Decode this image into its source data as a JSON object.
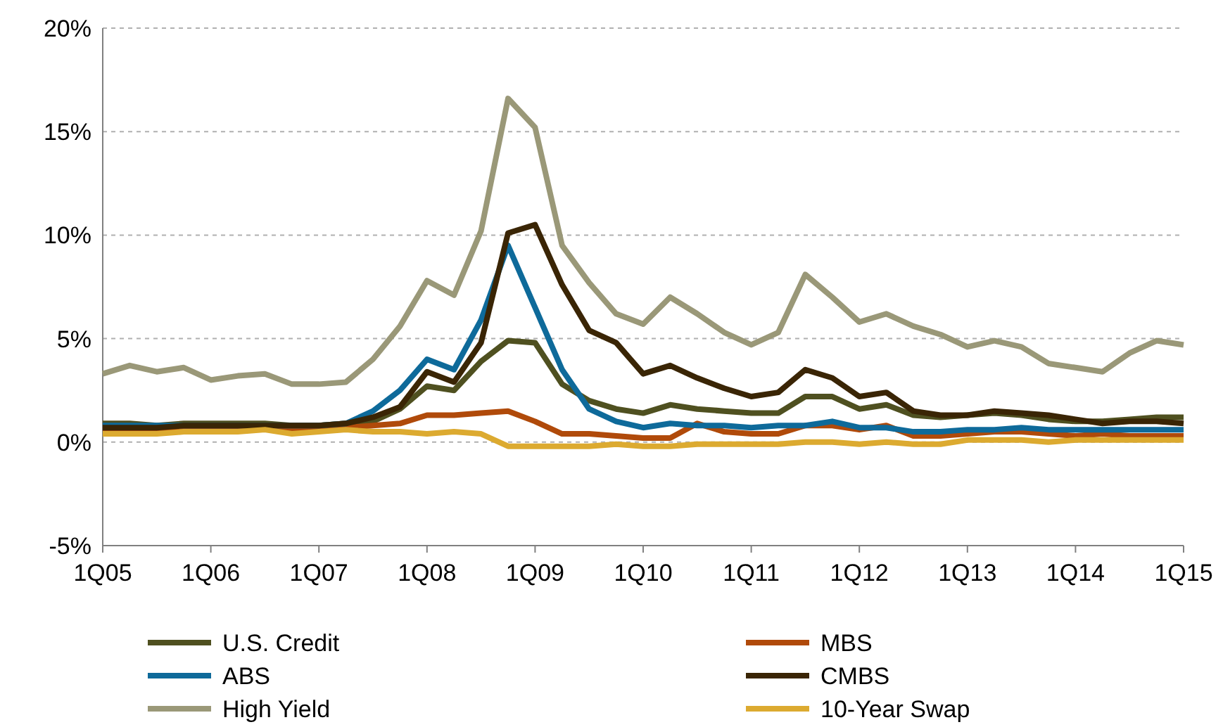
{
  "chart_data": {
    "type": "line",
    "categories": [
      "1Q05",
      null,
      null,
      null,
      "1Q06",
      null,
      null,
      null,
      "1Q07",
      null,
      null,
      null,
      "1Q08",
      null,
      null,
      null,
      "1Q09",
      null,
      null,
      null,
      "1Q10",
      null,
      null,
      null,
      "1Q11",
      null,
      null,
      null,
      "1Q12",
      null,
      null,
      null,
      "1Q13",
      null,
      null,
      null,
      "1Q14",
      null,
      null,
      null,
      "1Q15"
    ],
    "series": [
      {
        "name": "U.S. Credit",
        "color": "#4f5020",
        "values": [
          0.9,
          0.9,
          0.8,
          0.9,
          0.9,
          0.9,
          0.9,
          0.8,
          0.8,
          0.9,
          1.0,
          1.6,
          2.7,
          2.5,
          3.9,
          4.9,
          4.8,
          2.8,
          2.0,
          1.6,
          1.4,
          1.8,
          1.6,
          1.5,
          1.4,
          1.4,
          2.2,
          2.2,
          1.6,
          1.8,
          1.3,
          1.2,
          1.3,
          1.4,
          1.3,
          1.1,
          1.0,
          1.0,
          1.1,
          1.2,
          1.2
        ]
      },
      {
        "name": "MBS",
        "color": "#b04a0a",
        "values": [
          0.6,
          0.6,
          0.6,
          0.7,
          0.7,
          0.7,
          0.7,
          0.6,
          0.7,
          0.7,
          0.8,
          0.9,
          1.3,
          1.3,
          1.4,
          1.5,
          1.0,
          0.4,
          0.4,
          0.3,
          0.2,
          0.2,
          0.9,
          0.5,
          0.4,
          0.4,
          0.8,
          0.8,
          0.6,
          0.8,
          0.3,
          0.3,
          0.4,
          0.5,
          0.5,
          0.4,
          0.3,
          0.4,
          0.3,
          0.3,
          0.3
        ]
      },
      {
        "name": "ABS",
        "color": "#0e6a9a",
        "values": [
          0.8,
          0.8,
          0.8,
          0.8,
          0.8,
          0.8,
          0.8,
          0.8,
          0.8,
          0.9,
          1.5,
          2.5,
          4.0,
          3.5,
          5.9,
          9.5,
          6.5,
          3.5,
          1.6,
          1.0,
          0.7,
          0.9,
          0.8,
          0.8,
          0.7,
          0.8,
          0.8,
          1.0,
          0.7,
          0.7,
          0.5,
          0.5,
          0.6,
          0.6,
          0.7,
          0.6,
          0.6,
          0.6,
          0.6,
          0.6,
          0.6
        ]
      },
      {
        "name": "CMBS",
        "color": "#3a2505",
        "values": [
          0.7,
          0.7,
          0.7,
          0.8,
          0.8,
          0.8,
          0.8,
          0.8,
          0.8,
          0.9,
          1.2,
          1.7,
          3.4,
          2.9,
          4.8,
          10.1,
          10.5,
          7.6,
          5.4,
          4.8,
          3.3,
          3.7,
          3.1,
          2.6,
          2.2,
          2.4,
          3.5,
          3.1,
          2.2,
          2.4,
          1.5,
          1.3,
          1.3,
          1.5,
          1.4,
          1.3,
          1.1,
          0.9,
          1.0,
          1.0,
          0.9
        ]
      },
      {
        "name": "High Yield",
        "color": "#9a9878",
        "values": [
          3.3,
          3.7,
          3.4,
          3.6,
          3.0,
          3.2,
          3.3,
          2.8,
          2.8,
          2.9,
          4.0,
          5.6,
          7.8,
          7.1,
          10.2,
          16.6,
          15.2,
          9.5,
          7.7,
          6.2,
          5.7,
          7.0,
          6.2,
          5.3,
          4.7,
          5.3,
          8.1,
          7.0,
          5.8,
          6.2,
          5.6,
          5.2,
          4.6,
          4.9,
          4.6,
          3.8,
          3.6,
          3.4,
          4.3,
          4.9,
          4.7
        ]
      },
      {
        "name": "10-Year Swap",
        "color": "#dcaa30",
        "values": [
          0.4,
          0.4,
          0.4,
          0.5,
          0.5,
          0.5,
          0.6,
          0.4,
          0.5,
          0.6,
          0.5,
          0.5,
          0.4,
          0.5,
          0.4,
          -0.2,
          -0.2,
          -0.2,
          -0.2,
          -0.1,
          -0.2,
          -0.2,
          -0.1,
          -0.1,
          -0.1,
          -0.1,
          0.0,
          0.0,
          -0.1,
          0.0,
          -0.1,
          -0.1,
          0.1,
          0.1,
          0.1,
          0.0,
          0.1,
          0.1,
          0.1,
          0.1,
          0.1
        ]
      }
    ],
    "ylim": [
      -5,
      20
    ],
    "yticks": [
      {
        "value": -5,
        "label": "-5%"
      },
      {
        "value": 0,
        "label": "0%"
      },
      {
        "value": 5,
        "label": "5%"
      },
      {
        "value": 10,
        "label": "10%"
      },
      {
        "value": 15,
        "label": "15%"
      },
      {
        "value": 20,
        "label": "20%"
      }
    ],
    "grid": "y",
    "legend": "bottom",
    "marker": "none",
    "line_style": "solid"
  }
}
